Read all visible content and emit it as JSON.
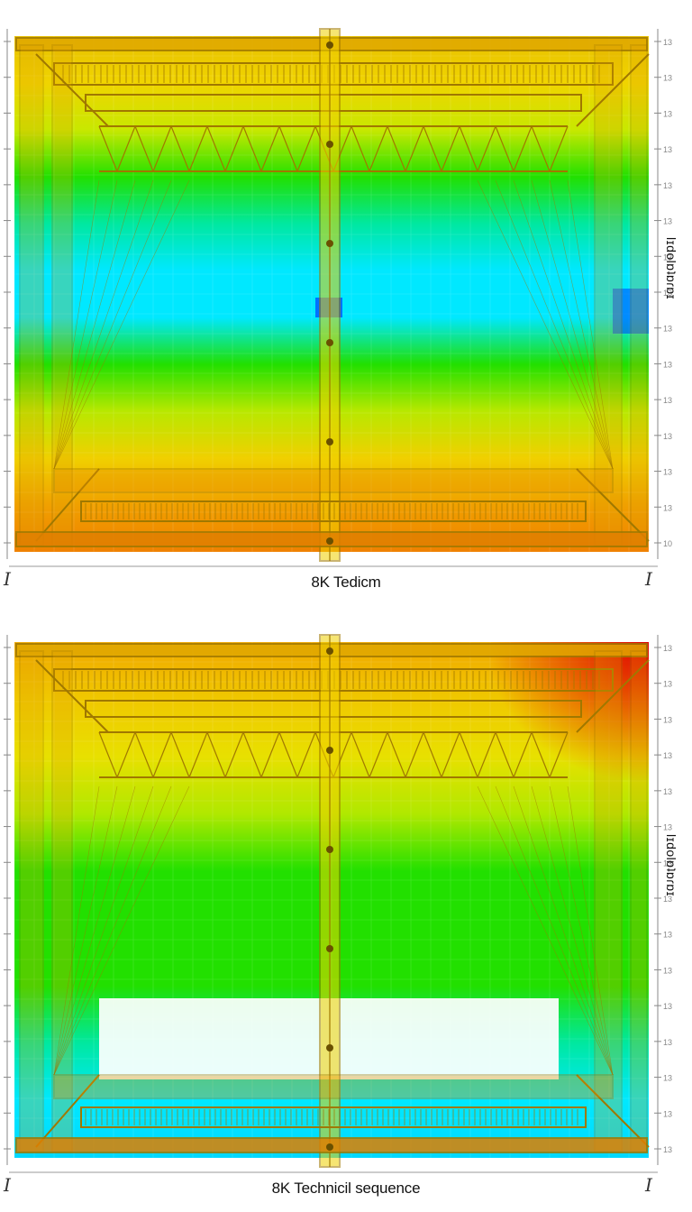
{
  "panels": [
    {
      "caption": "8K Tedicm",
      "side_label": "lɪdolɒʇɒɾɒɪ",
      "left_corner": "I",
      "right_corner": "I",
      "tick_labels": [
        "13",
        "13",
        "13",
        "13",
        "13",
        "13",
        "13",
        "13",
        "13",
        "13",
        "13",
        "13",
        "13",
        "13",
        "10"
      ],
      "gradient": [
        "#e8c000",
        "#f0d400",
        "#c8e800",
        "#22e000",
        "#00e8a0",
        "#00e8ff",
        "#00e8ff",
        "#22e000",
        "#b8e800",
        "#f0d000",
        "#f0a000",
        "#ef8000"
      ],
      "accent_band_color": "#0040ff"
    },
    {
      "caption": "8K Technicil sequence",
      "side_label": "lɪdolɒʇɒɾɒɪ",
      "left_corner": "I",
      "right_corner": "I",
      "tick_labels": [
        "13",
        "13",
        "13",
        "13",
        "13",
        "13",
        "13",
        "13",
        "13",
        "13",
        "13",
        "13",
        "13",
        "13",
        "13"
      ],
      "gradient": [
        "#f0a800",
        "#f0c800",
        "#e8e000",
        "#b0e800",
        "#22e000",
        "#22e000",
        "#22e000",
        "#00e8a0",
        "#00e8ff",
        "#00d8ff"
      ],
      "hot_corner_color": "#e00000"
    }
  ],
  "colors": {
    "steel": "#a07800",
    "steel_dark": "#6a5000",
    "tick": "#888888",
    "gridline": "#d8d8d8"
  }
}
